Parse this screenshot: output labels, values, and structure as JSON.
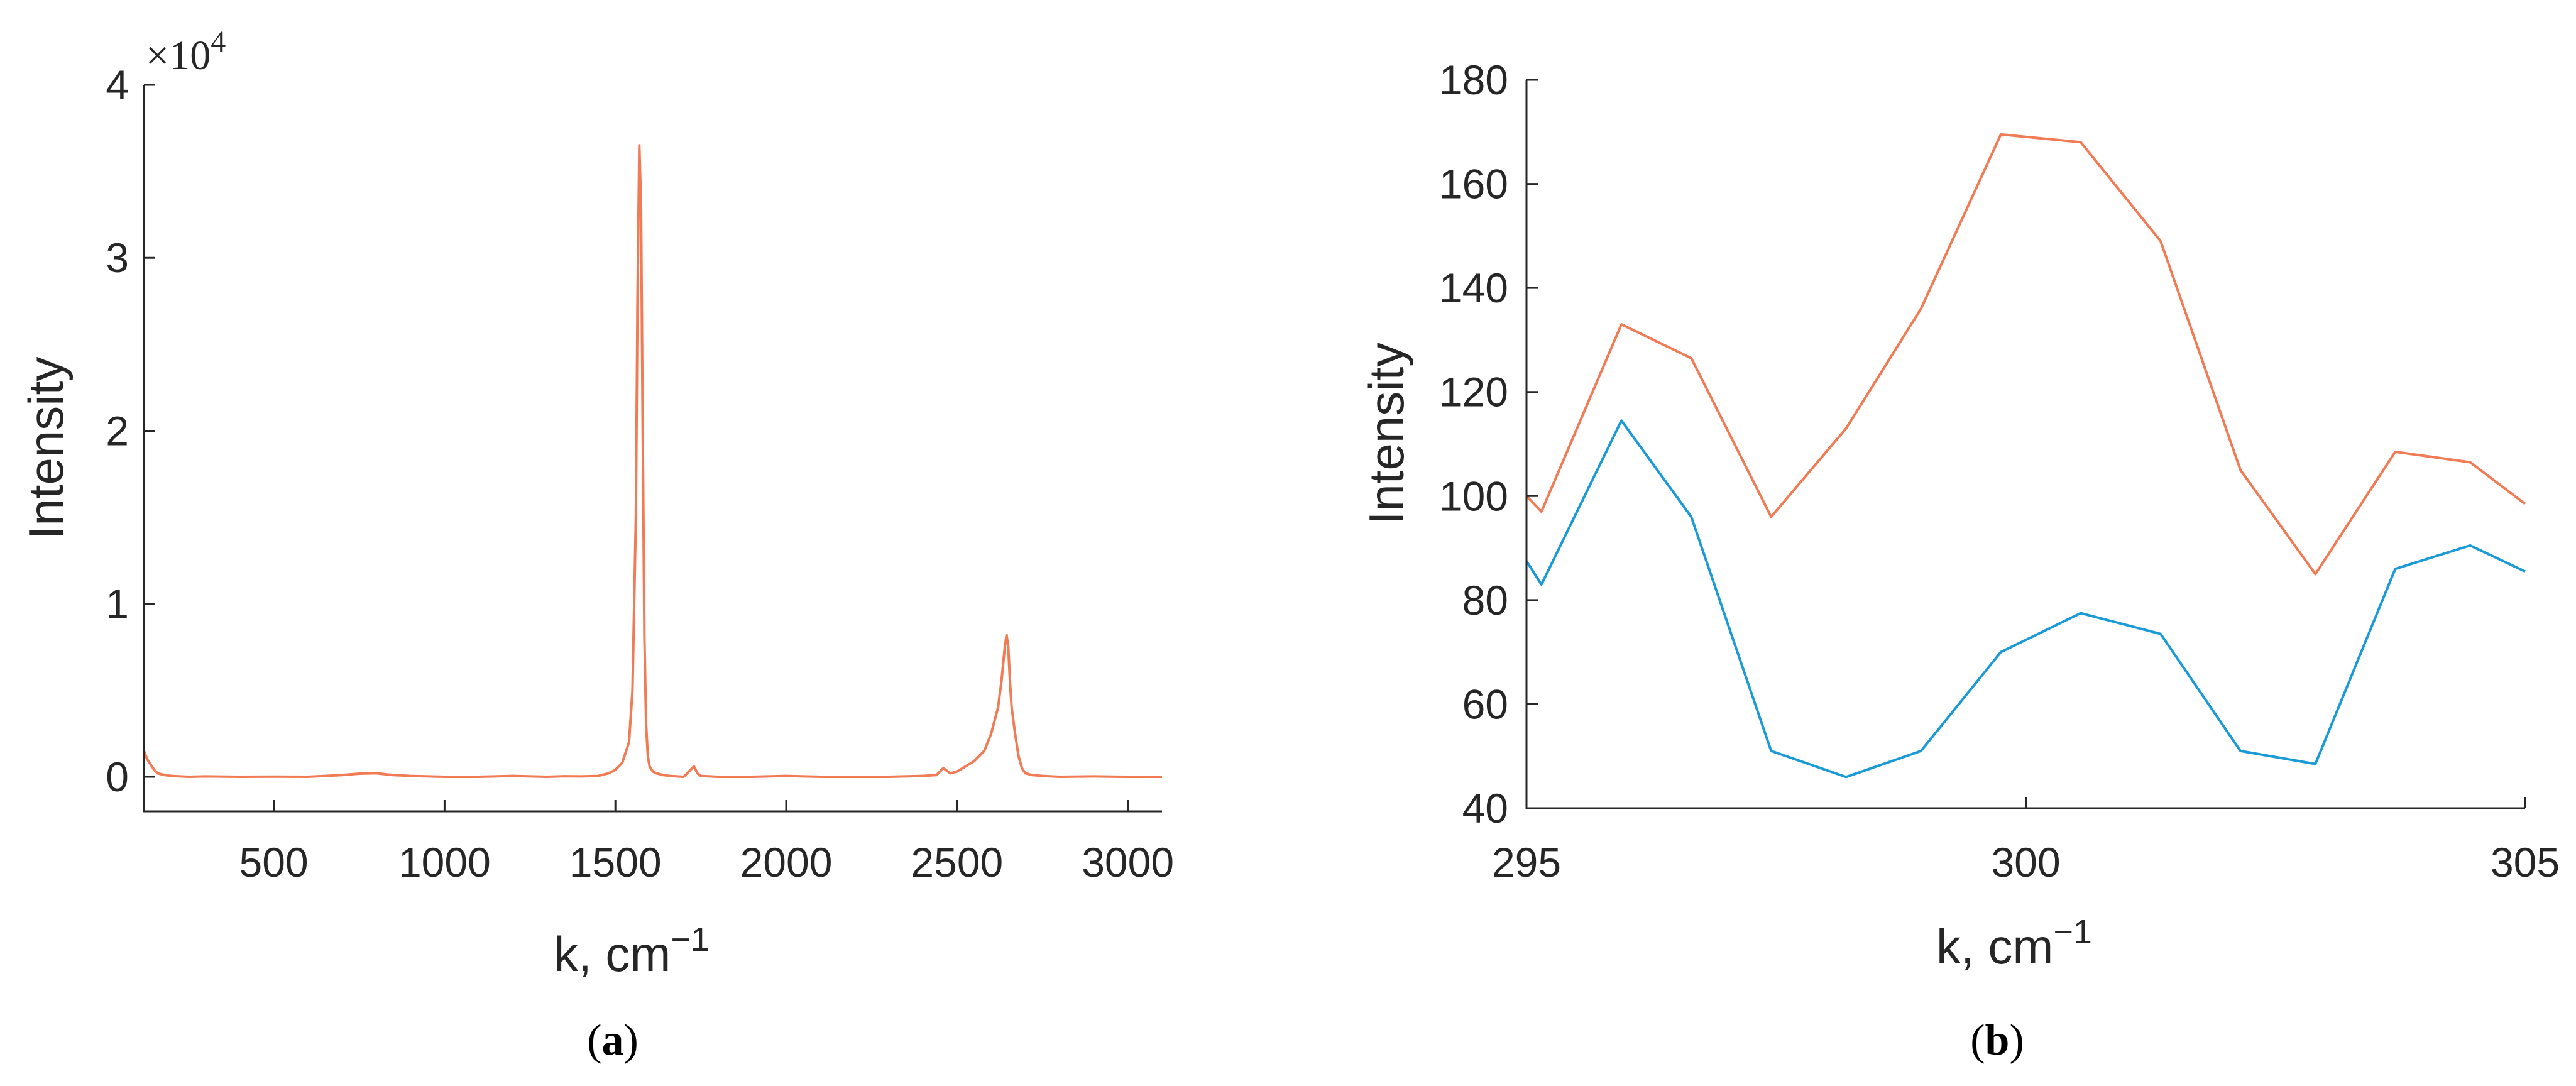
{
  "chart_data": [
    {
      "id": "a",
      "type": "line",
      "panel_label": "(a)",
      "panel_label_letter": "a",
      "xlabel": "k, cm",
      "xlabel_exponent": "−1",
      "ylabel": "Intensity",
      "xlim": [
        120,
        3100
      ],
      "ylim": [
        -2000,
        40000
      ],
      "xticks": [
        500,
        1000,
        1500,
        2000,
        2500,
        3000
      ],
      "xtick_labels": [
        "500",
        "1000",
        "1500",
        "2000",
        "2500",
        "3000"
      ],
      "yticks": [
        0,
        10000,
        20000,
        30000,
        40000
      ],
      "ytick_labels": [
        "0",
        "1",
        "2",
        "3",
        "4"
      ],
      "y_multiplier": "×10",
      "y_multiplier_exponent": "4",
      "series": [
        {
          "color": "#f07b54",
          "x": [
            120,
            130,
            140,
            150,
            160,
            180,
            200,
            250,
            300,
            400,
            500,
            600,
            700,
            750,
            800,
            850,
            900,
            1000,
            1100,
            1200,
            1300,
            1350,
            1400,
            1450,
            1480,
            1500,
            1520,
            1540,
            1550,
            1560,
            1565,
            1570,
            1575,
            1580,
            1585,
            1590,
            1595,
            1600,
            1610,
            1620,
            1640,
            1660,
            1700,
            1730,
            1740,
            1750,
            1800,
            1900,
            2000,
            2100,
            2200,
            2300,
            2400,
            2440,
            2460,
            2480,
            2500,
            2550,
            2580,
            2600,
            2620,
            2630,
            2640,
            2645,
            2650,
            2655,
            2660,
            2670,
            2680,
            2690,
            2700,
            2720,
            2750,
            2800,
            2900,
            3000,
            3100
          ],
          "y": [
            1500,
            1000,
            700,
            400,
            200,
            100,
            50,
            0,
            20,
            0,
            10,
            0,
            100,
            180,
            200,
            100,
            50,
            0,
            0,
            50,
            0,
            30,
            20,
            50,
            200,
            400,
            800,
            2000,
            5000,
            15000,
            28000,
            36500,
            33000,
            20000,
            8000,
            3000,
            1200,
            600,
            300,
            200,
            100,
            50,
            0,
            600,
            200,
            50,
            0,
            0,
            50,
            0,
            0,
            0,
            50,
            100,
            500,
            200,
            300,
            900,
            1500,
            2500,
            4000,
            5500,
            7500,
            8200,
            7500,
            5500,
            4000,
            2500,
            1200,
            500,
            200,
            100,
            50,
            0,
            20,
            0,
            0
          ]
        }
      ]
    },
    {
      "id": "b",
      "type": "line",
      "panel_label": "(b)",
      "panel_label_letter": "b",
      "xlabel": "k, cm",
      "xlabel_exponent": "−1",
      "ylabel": "Intensity",
      "xlim": [
        295,
        305
      ],
      "ylim": [
        40,
        180
      ],
      "xticks": [
        295,
        300,
        305
      ],
      "xtick_labels": [
        "295",
        "300",
        "305"
      ],
      "yticks": [
        40,
        60,
        80,
        100,
        120,
        140,
        160,
        180
      ],
      "ytick_labels": [
        "40",
        "60",
        "80",
        "100",
        "120",
        "140",
        "160",
        "180"
      ],
      "series": [
        {
          "color": "#f07b54",
          "x": [
            295.0,
            295.15,
            295.95,
            296.65,
            297.45,
            298.2,
            298.95,
            299.75,
            300.55,
            301.35,
            302.15,
            302.9,
            303.7,
            304.45,
            305.0
          ],
          "y": [
            100,
            97,
            133,
            126.5,
            96,
            113,
            136,
            169.5,
            168,
            149,
            105,
            85,
            108.5,
            106.5,
            98.5
          ]
        },
        {
          "color": "#1a9ad6",
          "x": [
            295.0,
            295.15,
            295.95,
            296.65,
            297.45,
            298.2,
            298.95,
            299.75,
            300.55,
            301.35,
            302.15,
            302.9,
            303.7,
            304.45,
            305.0
          ],
          "y": [
            87.5,
            83,
            114.5,
            96,
            51,
            46,
            51,
            70,
            77.5,
            73.5,
            51,
            48.5,
            86,
            90.5,
            85.5
          ]
        }
      ]
    }
  ]
}
